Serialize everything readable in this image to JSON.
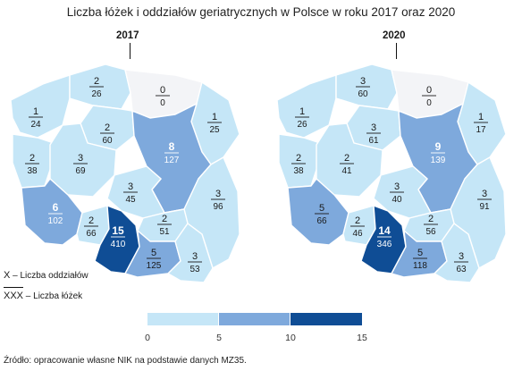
{
  "title": "Liczba łóżek i oddziałów geriatrycznych w Polsce w roku 2017 oraz 2020",
  "maps": [
    {
      "year": "2017",
      "regions": [
        {
          "id": "zachodniopomorskie",
          "wards": "1",
          "beds": "24"
        },
        {
          "id": "pomorskie",
          "wards": "2",
          "beds": "26"
        },
        {
          "id": "warminsko-mazurskie",
          "wards": "0",
          "beds": "0"
        },
        {
          "id": "podlaskie",
          "wards": "1",
          "beds": "25"
        },
        {
          "id": "kujawsko-pomorskie",
          "wards": "2",
          "beds": "60"
        },
        {
          "id": "lubuskie",
          "wards": "2",
          "beds": "38"
        },
        {
          "id": "wielkopolskie",
          "wards": "3",
          "beds": "69"
        },
        {
          "id": "mazowieckie",
          "wards": "8",
          "beds": "127"
        },
        {
          "id": "lodzkie",
          "wards": "3",
          "beds": "45"
        },
        {
          "id": "lubelskie",
          "wards": "3",
          "beds": "96"
        },
        {
          "id": "dolnoslaskie",
          "wards": "6",
          "beds": "102"
        },
        {
          "id": "opolskie",
          "wards": "2",
          "beds": "66"
        },
        {
          "id": "slaskie",
          "wards": "15",
          "beds": "410"
        },
        {
          "id": "swietokrzyskie",
          "wards": "2",
          "beds": "51"
        },
        {
          "id": "malopolskie",
          "wards": "5",
          "beds": "125"
        },
        {
          "id": "podkarpackie",
          "wards": "3",
          "beds": "53"
        }
      ]
    },
    {
      "year": "2020",
      "regions": [
        {
          "id": "zachodniopomorskie",
          "wards": "1",
          "beds": "26"
        },
        {
          "id": "pomorskie",
          "wards": "3",
          "beds": "60"
        },
        {
          "id": "warminsko-mazurskie",
          "wards": "0",
          "beds": "0"
        },
        {
          "id": "podlaskie",
          "wards": "1",
          "beds": "17"
        },
        {
          "id": "kujawsko-pomorskie",
          "wards": "3",
          "beds": "61"
        },
        {
          "id": "lubuskie",
          "wards": "2",
          "beds": "38"
        },
        {
          "id": "wielkopolskie",
          "wards": "2",
          "beds": "41"
        },
        {
          "id": "mazowieckie",
          "wards": "9",
          "beds": "139"
        },
        {
          "id": "lodzkie",
          "wards": "3",
          "beds": "40"
        },
        {
          "id": "lubelskie",
          "wards": "3",
          "beds": "91"
        },
        {
          "id": "dolnoslaskie",
          "wards": "5",
          "beds": "66"
        },
        {
          "id": "opolskie",
          "wards": "2",
          "beds": "46"
        },
        {
          "id": "slaskie",
          "wards": "14",
          "beds": "346"
        },
        {
          "id": "swietokrzyskie",
          "wards": "2",
          "beds": "56"
        },
        {
          "id": "malopolskie",
          "wards": "5",
          "beds": "118"
        },
        {
          "id": "podkarpackie",
          "wards": "3",
          "beds": "63"
        }
      ]
    }
  ],
  "key": {
    "symbol_top": "X",
    "symbol_top_label": "– Liczba oddziałów",
    "symbol_bottom": "XXX",
    "symbol_bottom_label": "– Liczba łóżek"
  },
  "scale": {
    "ticks": [
      "0",
      "5",
      "10",
      "15"
    ],
    "bins": [
      {
        "from": 0,
        "to": 5,
        "color": "#c5e6f7"
      },
      {
        "from": 5,
        "to": 10,
        "color": "#7ea9dc"
      },
      {
        "from": 10,
        "to": 15,
        "color": "#0f4d95"
      }
    ],
    "zero_color": "#f3f4f7"
  },
  "source": "Źródło: opracowanie własne NIK na podstawie danych MZ35."
}
